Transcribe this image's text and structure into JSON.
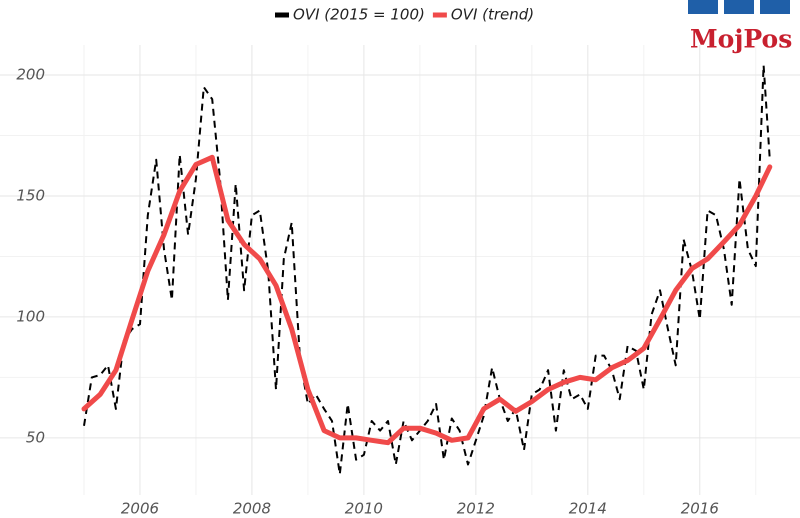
{
  "chart_data": {
    "type": "line",
    "logo": "MojPos",
    "xlim": [
      2003.5,
      2017.79
    ],
    "ylim": [
      26.4,
      212.4
    ],
    "xticks": [
      2006,
      2008,
      2010,
      2012,
      2014,
      2016
    ],
    "yticks": [
      50,
      100,
      150,
      200
    ],
    "minor_xticks": [
      2005,
      2007,
      2009,
      2011,
      2013,
      2015,
      2017
    ],
    "minor_yticks": [
      75,
      125,
      175
    ],
    "grid": true,
    "legend": "top",
    "series": [
      {
        "name": "OVI (2015 = 100)",
        "color": "#000000",
        "dash": true,
        "x": [
          2005.0,
          2005.14,
          2005.29,
          2005.43,
          2005.57,
          2005.71,
          2005.86,
          2006.0,
          2006.14,
          2006.29,
          2006.43,
          2006.57,
          2006.71,
          2006.86,
          2007.0,
          2007.14,
          2007.29,
          2007.43,
          2007.57,
          2007.71,
          2007.86,
          2008.0,
          2008.14,
          2008.29,
          2008.43,
          2008.57,
          2008.71,
          2008.86,
          2009.0,
          2009.14,
          2009.29,
          2009.43,
          2009.57,
          2009.71,
          2009.86,
          2010.0,
          2010.14,
          2010.29,
          2010.43,
          2010.57,
          2010.71,
          2010.86,
          2011.0,
          2011.14,
          2011.29,
          2011.43,
          2011.57,
          2011.71,
          2011.86,
          2012.0,
          2012.14,
          2012.29,
          2012.43,
          2012.57,
          2012.71,
          2012.86,
          2013.0,
          2013.14,
          2013.29,
          2013.43,
          2013.57,
          2013.71,
          2013.86,
          2014.0,
          2014.14,
          2014.29,
          2014.43,
          2014.57,
          2014.71,
          2014.86,
          2015.0,
          2015.14,
          2015.29,
          2015.43,
          2015.57,
          2015.71,
          2015.86,
          2016.0,
          2016.14,
          2016.29,
          2016.43,
          2016.57,
          2016.71,
          2016.86,
          2017.0,
          2017.14,
          2017.25
        ],
        "values": [
          55,
          75,
          76,
          80,
          62,
          90,
          95,
          97,
          142,
          165,
          128,
          107,
          167,
          134,
          157,
          195,
          190,
          157,
          107,
          155,
          111,
          142,
          144,
          119,
          70,
          124,
          139,
          82,
          64,
          68,
          62,
          57,
          35,
          64,
          41,
          43,
          57,
          53,
          57,
          39,
          57,
          49,
          53,
          57,
          64,
          41,
          58,
          53,
          39,
          49,
          59,
          79,
          66,
          57,
          62,
          45,
          68,
          70,
          78,
          53,
          78,
          66,
          68,
          62,
          84,
          84,
          78,
          66,
          88,
          86,
          70,
          101,
          111,
          95,
          80,
          132,
          119,
          99,
          144,
          142,
          128,
          105,
          157,
          128,
          121,
          204,
          165
        ]
      },
      {
        "name": "OVI (trend)",
        "color": "#f04a4a",
        "dash": false,
        "x": [
          2005.0,
          2005.29,
          2005.57,
          2005.86,
          2006.14,
          2006.43,
          2006.71,
          2007.0,
          2007.29,
          2007.57,
          2007.86,
          2008.14,
          2008.43,
          2008.71,
          2009.0,
          2009.29,
          2009.57,
          2009.86,
          2010.14,
          2010.43,
          2010.71,
          2011.0,
          2011.29,
          2011.57,
          2011.86,
          2012.14,
          2012.43,
          2012.71,
          2013.0,
          2013.29,
          2013.57,
          2013.86,
          2014.14,
          2014.43,
          2014.71,
          2015.0,
          2015.29,
          2015.57,
          2015.86,
          2016.14,
          2016.43,
          2016.71,
          2017.0,
          2017.25
        ],
        "values": [
          62,
          68,
          78,
          99,
          119,
          134,
          152,
          163,
          166,
          140,
          130,
          124,
          113,
          95,
          70,
          53,
          50,
          50,
          49,
          48,
          54,
          54,
          52,
          49,
          50,
          62,
          66,
          61,
          65,
          70,
          73,
          75,
          74,
          79,
          82,
          87,
          99,
          111,
          120,
          124,
          131,
          138,
          150,
          162
        ]
      }
    ]
  }
}
